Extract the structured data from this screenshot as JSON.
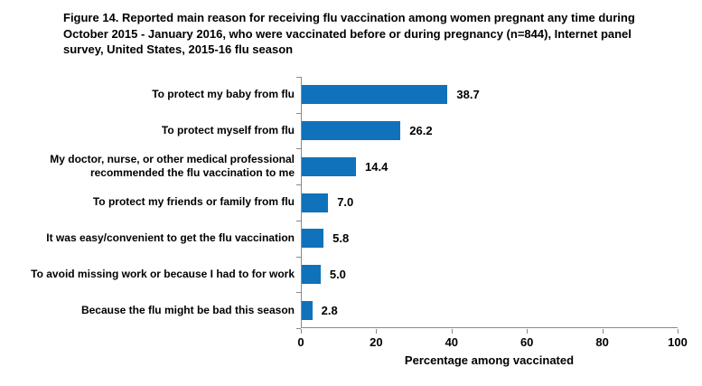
{
  "title": "Figure 14. Reported main reason for receiving flu vaccination among women pregnant any time during October 2015 - January 2016, who were vaccinated before or during pregnancy (n=844), Internet panel survey, United States, 2015-16 flu season",
  "chart_data": {
    "type": "bar",
    "orientation": "horizontal",
    "categories": [
      "To protect my baby from flu",
      "To protect myself from flu",
      "My doctor, nurse, or other medical professional recommended the flu vaccination to me",
      "To protect my friends or family from flu",
      "It was easy/convenient to get the flu vaccination",
      "To avoid missing work or because I had to for work",
      "Because the flu might be bad this season"
    ],
    "values": [
      38.7,
      26.2,
      14.4,
      7.0,
      5.8,
      5.0,
      2.8
    ],
    "value_labels": [
      "38.7",
      "26.2",
      "14.4",
      "7.0",
      "5.8",
      "5.0",
      "2.8"
    ],
    "xlabel": "Percentage among vaccinated",
    "xlim": [
      0,
      100
    ],
    "xticks": [
      0,
      20,
      40,
      60,
      80,
      100
    ],
    "bar_color": "#1072BA",
    "axis_color": "#898989",
    "grid": false,
    "legend": "none"
  }
}
